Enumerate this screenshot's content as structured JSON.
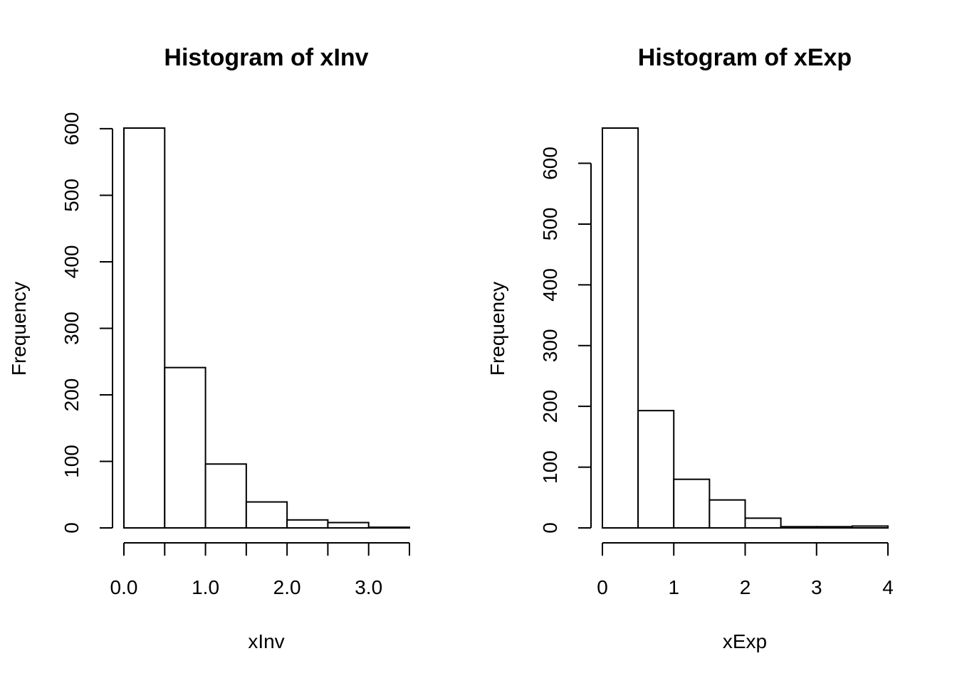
{
  "chart_data": [
    {
      "type": "bar",
      "title": "Histogram of xInv",
      "xlabel": "xInv",
      "ylabel": "Frequency",
      "bin_edges": [
        0.0,
        0.5,
        1.0,
        1.5,
        2.0,
        2.5,
        3.0,
        3.5
      ],
      "values": [
        601,
        241,
        96,
        39,
        12,
        8,
        1
      ],
      "xlim": [
        0.0,
        3.5
      ],
      "ylim": [
        0,
        601
      ],
      "x_ticks": [
        0.0,
        0.5,
        1.0,
        1.5,
        2.0,
        2.5,
        3.0,
        3.5
      ],
      "x_tick_labels": [
        {
          "value": 0.0,
          "label": "0.0"
        },
        {
          "value": 1.0,
          "label": "1.0"
        },
        {
          "value": 2.0,
          "label": "2.0"
        },
        {
          "value": 3.0,
          "label": "3.0"
        }
      ],
      "y_ticks": [
        0,
        100,
        200,
        300,
        400,
        500,
        600
      ],
      "y_tick_labels": [
        "0",
        "100",
        "200",
        "300",
        "400",
        "500",
        "600"
      ],
      "grid": false,
      "bar_color": "#ffffff",
      "edge_color": "#000000"
    },
    {
      "type": "bar",
      "title": "Histogram of xExp",
      "xlabel": "xExp",
      "ylabel": "Frequency",
      "bin_edges": [
        0.0,
        0.5,
        1.0,
        1.5,
        2.0,
        2.5,
        3.0,
        3.5,
        4.0
      ],
      "values": [
        658,
        193,
        80,
        46,
        16,
        2,
        2,
        3
      ],
      "xlim": [
        0,
        4
      ],
      "ylim": [
        0,
        658
      ],
      "x_ticks": [
        0,
        1,
        2,
        3,
        4
      ],
      "x_tick_labels": [
        {
          "value": 0,
          "label": "0"
        },
        {
          "value": 1,
          "label": "1"
        },
        {
          "value": 2,
          "label": "2"
        },
        {
          "value": 3,
          "label": "3"
        },
        {
          "value": 4,
          "label": "4"
        }
      ],
      "y_ticks": [
        0,
        100,
        200,
        300,
        400,
        500,
        600
      ],
      "y_tick_labels": [
        "0",
        "100",
        "200",
        "300",
        "400",
        "500",
        "600"
      ],
      "grid": false,
      "bar_color": "#ffffff",
      "edge_color": "#000000"
    }
  ]
}
